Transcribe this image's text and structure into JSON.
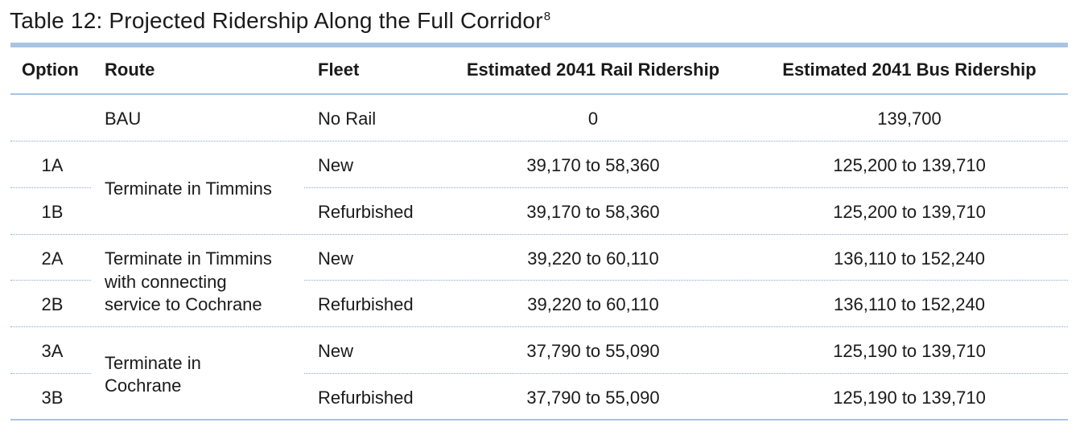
{
  "caption": {
    "text": "Table 12: Projected Ridership Along the Full Corridor",
    "footnote": "8"
  },
  "headers": {
    "option": "Option",
    "route": "Route",
    "fleet": "Fleet",
    "rail": "Estimated 2041 Rail Ridership",
    "bus": "Estimated 2041 Bus Ridership"
  },
  "rows": [
    {
      "option": "",
      "fleet": "No Rail",
      "rail": "0",
      "bus": "139,700"
    },
    {
      "option": "1A",
      "fleet": "New",
      "rail": "39,170 to 58,360",
      "bus": "125,200 to 139,710"
    },
    {
      "option": "1B",
      "fleet": "Refurbished",
      "rail": "39,170 to 58,360",
      "bus": "125,200 to 139,710"
    },
    {
      "option": "2A",
      "fleet": "New",
      "rail": "39,220 to 60,110",
      "bus": "136,110 to 152,240"
    },
    {
      "option": "2B",
      "fleet": "Refurbished",
      "rail": "39,220 to 60,110",
      "bus": "136,110 to 152,240"
    },
    {
      "option": "3A",
      "fleet": "New",
      "rail": "37,790 to 55,090",
      "bus": "125,190 to 139,710"
    },
    {
      "option": "3B",
      "fleet": "Refurbished",
      "rail": "37,790 to 55,090",
      "bus": "125,190 to 139,710"
    }
  ],
  "routes": {
    "bau": "BAU",
    "r1": "Terminate in Timmins",
    "r2_line1": "Terminate in Timmins",
    "r2_line2": "with connecting",
    "r2_line3": "service to Cochrane",
    "r3_line1": "Terminate in",
    "r3_line2": "Cochrane"
  },
  "colors": {
    "rule": "#a8c4e2",
    "dotted": "#8aa9cc",
    "text": "#1a1a1a"
  }
}
